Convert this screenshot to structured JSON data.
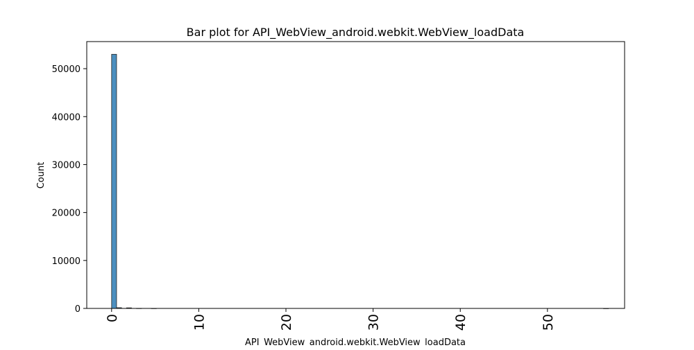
{
  "chart_data": {
    "type": "bar",
    "title": "Bar plot for API_WebView_android.webkit.WebView_loadData",
    "xlabel": "API_WebView_android.webkit.WebView_loadData",
    "ylabel": "Count",
    "xlim": [
      -2.85,
      58.85
    ],
    "ylim": [
      0,
      55650
    ],
    "x_ticks": [
      0,
      10,
      20,
      30,
      40,
      50
    ],
    "y_ticks": [
      0,
      10000,
      20000,
      30000,
      40000,
      50000
    ],
    "bin_width": 0.57,
    "bars": [
      {
        "x": 0,
        "value": 53000
      },
      {
        "x": 0.57,
        "value": 150
      },
      {
        "x": 1.71,
        "value": 120
      },
      {
        "x": 2.85,
        "value": 20
      },
      {
        "x": 4.56,
        "value": 8
      },
      {
        "x": 56.43,
        "value": 1
      }
    ],
    "colors": {
      "bar_fill": "#4c8fbf",
      "bar_edge": "#222222",
      "axes": "#000000"
    }
  }
}
